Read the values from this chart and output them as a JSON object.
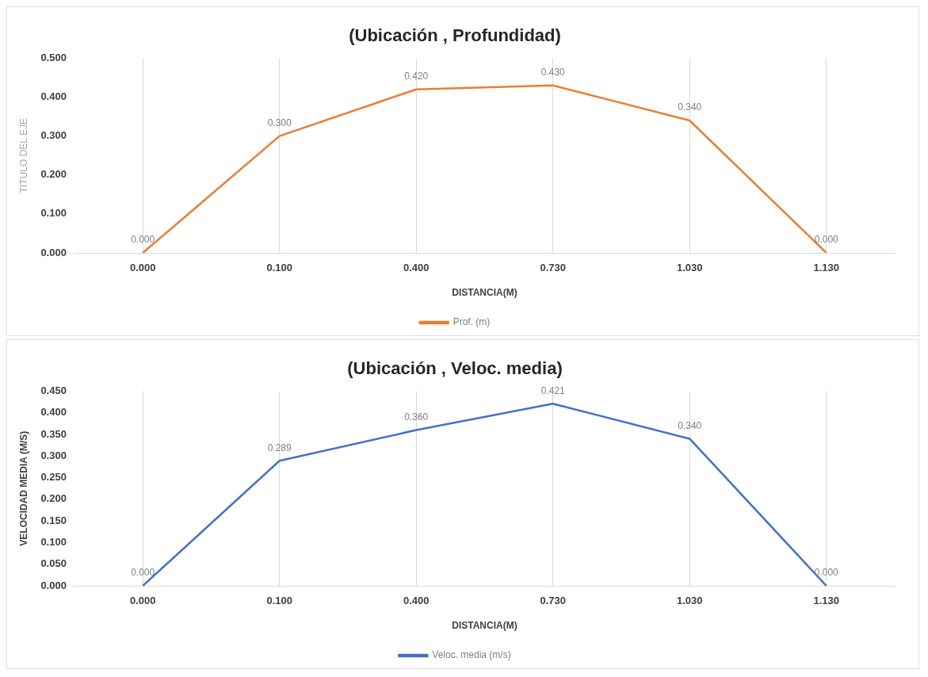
{
  "chart_data": [
    {
      "type": "line",
      "title": "(Ubicación , Profundidad)",
      "xlabel": "DISTANCIA(M)",
      "ylabel": "TITULO DEL EJE",
      "categories": [
        "0.000",
        "0.100",
        "0.400",
        "0.730",
        "1.030",
        "1.130"
      ],
      "series": [
        {
          "name": "Prof. (m)",
          "color": "#ed7d31",
          "values": [
            0,
            0.3,
            0.42,
            0.43,
            0.34,
            0
          ],
          "value_labels": [
            "0.000",
            "0.300",
            "0.420",
            "0.430",
            "0.340",
            "0.000"
          ]
        }
      ],
      "ylim": [
        0,
        0.5
      ],
      "yticks": [
        {
          "value": 0,
          "label": "0.000"
        },
        {
          "value": 0.1,
          "label": "0.100"
        },
        {
          "value": 0.2,
          "label": "0.200"
        },
        {
          "value": 0.3,
          "label": "0.300"
        },
        {
          "value": 0.4,
          "label": "0.400"
        },
        {
          "value": 0.5,
          "label": "0.500"
        }
      ],
      "grid": "x",
      "legend": "bottom",
      "marker": "none"
    },
    {
      "type": "line",
      "title": "(Ubicación , Veloc. media)",
      "xlabel": "DISTANCIA(M)",
      "ylabel": "VELOCIDAD MEDIA (M/S)",
      "categories": [
        "0.000",
        "0.100",
        "0.400",
        "0.730",
        "1.030",
        "1.130"
      ],
      "series": [
        {
          "name": "Veloc. media (m/s)",
          "color": "#4472c4",
          "values": [
            0,
            0.289,
            0.36,
            0.421,
            0.34,
            0
          ],
          "value_labels": [
            "0.000",
            "0.289",
            "0.360",
            "0.421",
            "0.340",
            "0.000"
          ]
        }
      ],
      "ylim": [
        0,
        0.45
      ],
      "yticks": [
        {
          "value": 0,
          "label": "0.000"
        },
        {
          "value": 0.05,
          "label": "0.050"
        },
        {
          "value": 0.1,
          "label": "0.100"
        },
        {
          "value": 0.15,
          "label": "0.150"
        },
        {
          "value": 0.2,
          "label": "0.200"
        },
        {
          "value": 0.25,
          "label": "0.250"
        },
        {
          "value": 0.3,
          "label": "0.300"
        },
        {
          "value": 0.35,
          "label": "0.350"
        },
        {
          "value": 0.4,
          "label": "0.400"
        },
        {
          "value": 0.45,
          "label": "0.450"
        }
      ],
      "grid": "x",
      "legend": "bottom",
      "marker": "none"
    }
  ]
}
